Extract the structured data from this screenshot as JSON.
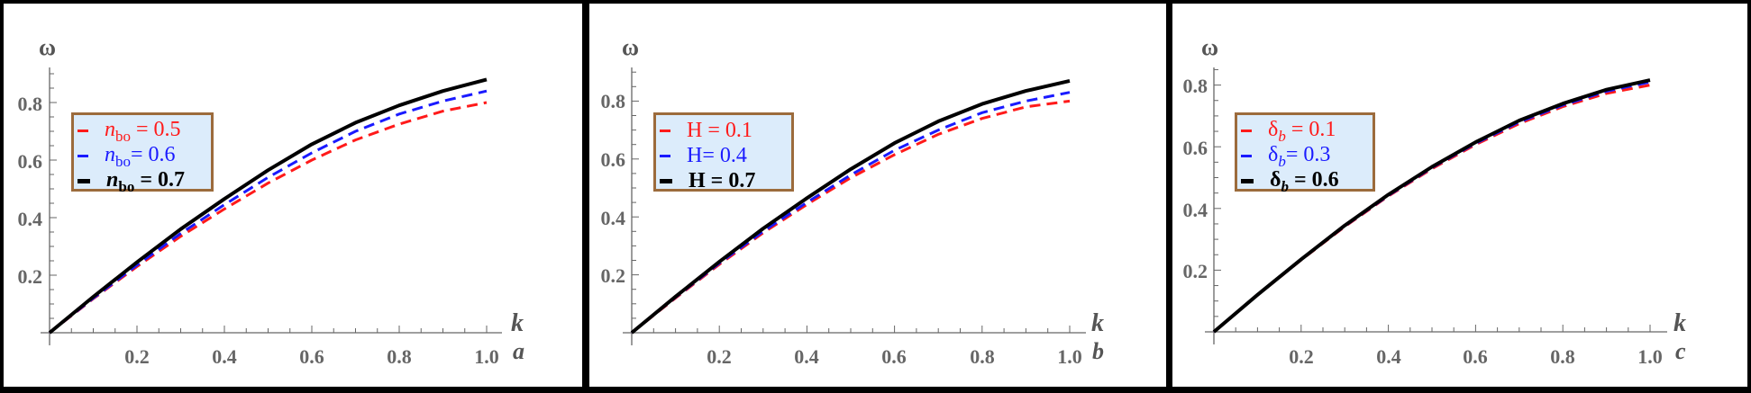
{
  "chart_data": [
    {
      "type": "line",
      "panel": "a",
      "title": "",
      "xlabel": "k",
      "ylabel": "ω",
      "xlim": [
        0,
        1.0
      ],
      "ylim": [
        0,
        0.92
      ],
      "x_ticks": [
        "0.2",
        "0.4",
        "0.6",
        "0.8",
        "1.0"
      ],
      "y_ticks": [
        "0.2",
        "0.4",
        "0.6",
        "0.8"
      ],
      "grid": false,
      "legend_position": "upper-left",
      "x": [
        0,
        0.1,
        0.2,
        0.3,
        0.4,
        0.5,
        0.6,
        0.7,
        0.8,
        0.9,
        1.0
      ],
      "series": [
        {
          "name": "n_bo = 0.5",
          "color": "#ff1a1a",
          "style": "dashed",
          "values": [
            0,
            0.118,
            0.23,
            0.335,
            0.43,
            0.52,
            0.6,
            0.67,
            0.725,
            0.77,
            0.8
          ]
        },
        {
          "name": "n_bo = 0.6",
          "color": "#1a1aff",
          "style": "dashed",
          "values": [
            0,
            0.12,
            0.235,
            0.345,
            0.445,
            0.54,
            0.625,
            0.7,
            0.76,
            0.805,
            0.84
          ]
        },
        {
          "name": "n_bo = 0.7",
          "color": "#000000",
          "style": "solid",
          "values": [
            0,
            0.125,
            0.245,
            0.36,
            0.465,
            0.565,
            0.655,
            0.73,
            0.79,
            0.84,
            0.88
          ]
        }
      ]
    },
    {
      "type": "line",
      "panel": "b",
      "title": "",
      "xlabel": "k",
      "ylabel": "ω",
      "xlim": [
        0,
        1.0
      ],
      "ylim": [
        0,
        0.92
      ],
      "x_ticks": [
        "0.2",
        "0.4",
        "0.6",
        "0.8",
        "1.0"
      ],
      "y_ticks": [
        "0.2",
        "0.4",
        "0.6",
        "0.8"
      ],
      "grid": false,
      "legend_position": "upper-left",
      "x": [
        0,
        0.1,
        0.2,
        0.3,
        0.4,
        0.5,
        0.6,
        0.7,
        0.8,
        0.9,
        1.0
      ],
      "series": [
        {
          "name": "H = 0.1",
          "color": "#ff1a1a",
          "style": "dashed",
          "values": [
            0,
            0.12,
            0.236,
            0.345,
            0.443,
            0.535,
            0.615,
            0.685,
            0.74,
            0.78,
            0.8
          ]
        },
        {
          "name": "H = 0.4",
          "color": "#1a1aff",
          "style": "dashed",
          "values": [
            0,
            0.122,
            0.24,
            0.35,
            0.45,
            0.545,
            0.63,
            0.7,
            0.76,
            0.8,
            0.83
          ]
        },
        {
          "name": "H = 0.7",
          "color": "#000000",
          "style": "solid",
          "values": [
            0,
            0.125,
            0.245,
            0.36,
            0.465,
            0.565,
            0.655,
            0.73,
            0.79,
            0.835,
            0.87
          ]
        }
      ]
    },
    {
      "type": "line",
      "panel": "c",
      "title": "",
      "xlabel": "k",
      "ylabel": "ω",
      "xlim": [
        0,
        1.0
      ],
      "ylim": [
        0,
        0.86
      ],
      "x_ticks": [
        "0.2",
        "0.4",
        "0.6",
        "0.8",
        "1.0"
      ],
      "y_ticks": [
        "0.2",
        "0.4",
        "0.6",
        "0.8"
      ],
      "grid": false,
      "legend_position": "upper-left",
      "x": [
        0,
        0.1,
        0.2,
        0.3,
        0.4,
        0.5,
        0.6,
        0.7,
        0.8,
        0.9,
        1.0
      ],
      "series": [
        {
          "name": "δ_b = 0.1",
          "color": "#ff1a1a",
          "style": "dashed",
          "values": [
            0,
            0.119,
            0.233,
            0.341,
            0.44,
            0.529,
            0.607,
            0.675,
            0.73,
            0.773,
            0.8
          ]
        },
        {
          "name": "δ_b = 0.3",
          "color": "#1a1aff",
          "style": "dashed",
          "values": [
            0,
            0.12,
            0.234,
            0.343,
            0.442,
            0.532,
            0.611,
            0.68,
            0.735,
            0.78,
            0.81
          ]
        },
        {
          "name": "δ_b = 0.6",
          "color": "#000000",
          "style": "solid",
          "values": [
            0,
            0.12,
            0.235,
            0.345,
            0.445,
            0.535,
            0.615,
            0.685,
            0.74,
            0.785,
            0.816
          ]
        }
      ]
    }
  ],
  "panels": [
    {
      "ylabel": "ω",
      "xlabel": "k",
      "sublabel": "a",
      "x_ticks": [
        "0.2",
        "0.4",
        "0.6",
        "0.8",
        "1.0"
      ],
      "y_ticks": [
        "0.2",
        "0.4",
        "0.6",
        "0.8"
      ],
      "legend": [
        {
          "sym": "n",
          "sub": "bo",
          "sub_italic": false,
          "eq": " = 0.5",
          "color": "#ff1a1a"
        },
        {
          "sym": "n",
          "sub": "bo",
          "sub_italic": false,
          "eq": "= 0.6",
          "color": "#1a1aff"
        },
        {
          "sym": "n",
          "sub": "bo",
          "sub_italic": false,
          "eq": " = 0.7",
          "color": "#000000"
        }
      ]
    },
    {
      "ylabel": "ω",
      "xlabel": "k",
      "sublabel": "b",
      "x_ticks": [
        "0.2",
        "0.4",
        "0.6",
        "0.8",
        "1.0"
      ],
      "y_ticks": [
        "0.2",
        "0.4",
        "0.6",
        "0.8"
      ],
      "legend": [
        {
          "sym": "H",
          "sub": "",
          "sub_italic": false,
          "eq": " = 0.1",
          "color": "#ff1a1a"
        },
        {
          "sym": "H",
          "sub": "",
          "sub_italic": false,
          "eq": "= 0.4",
          "color": "#1a1aff"
        },
        {
          "sym": "H",
          "sub": "",
          "sub_italic": false,
          "eq": " = 0.7",
          "color": "#000000"
        }
      ]
    },
    {
      "ylabel": "ω",
      "xlabel": "k",
      "sublabel": "c",
      "x_ticks": [
        "0.2",
        "0.4",
        "0.6",
        "0.8",
        "1.0"
      ],
      "y_ticks": [
        "0.2",
        "0.4",
        "0.6",
        "0.8"
      ],
      "legend": [
        {
          "sym": "δ",
          "sub": "b",
          "sub_italic": true,
          "eq": " = 0.1",
          "color": "#ff1a1a"
        },
        {
          "sym": "δ",
          "sub": "b",
          "sub_italic": true,
          "eq": "= 0.3",
          "color": "#1a1aff"
        },
        {
          "sym": "δ",
          "sub": "b",
          "sub_italic": true,
          "eq": " = 0.6",
          "color": "#000000"
        }
      ]
    }
  ]
}
